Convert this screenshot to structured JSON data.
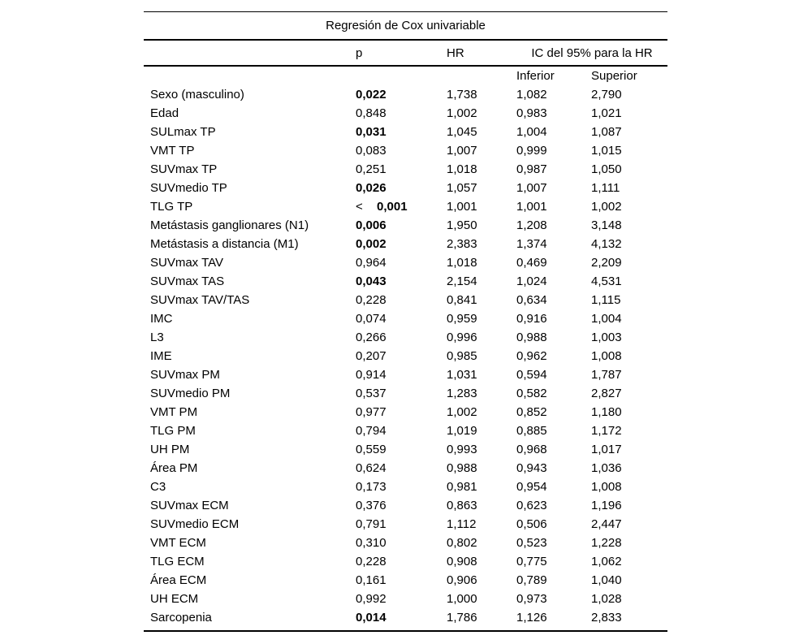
{
  "table": {
    "title": "Regresión de Cox univariable",
    "columns": {
      "p": "p",
      "hr": "HR",
      "ic": "IC del 95% para la HR",
      "inferior": "Inferior",
      "superior": "Superior"
    },
    "rows": [
      {
        "label": "Sexo (masculino)",
        "p_prefix": "",
        "p": "0,022",
        "p_bold": true,
        "hr": "1,738",
        "inf": "1,082",
        "sup": "2,790"
      },
      {
        "label": "Edad",
        "p_prefix": "",
        "p": "0,848",
        "p_bold": false,
        "hr": "1,002",
        "inf": "0,983",
        "sup": "1,021"
      },
      {
        "label": "SULmax TP",
        "p_prefix": "",
        "p": "0,031",
        "p_bold": true,
        "hr": "1,045",
        "inf": "1,004",
        "sup": "1,087"
      },
      {
        "label": "VMT TP",
        "p_prefix": "",
        "p": "0,083",
        "p_bold": false,
        "hr": "1,007",
        "inf": "0,999",
        "sup": "1,015"
      },
      {
        "label": "SUVmax TP",
        "p_prefix": "",
        "p": "0,251",
        "p_bold": false,
        "hr": "1,018",
        "inf": "0,987",
        "sup": "1,050"
      },
      {
        "label": "SUVmedio TP",
        "p_prefix": "",
        "p": "0,026",
        "p_bold": true,
        "hr": "1,057",
        "inf": "1,007",
        "sup": "1,111"
      },
      {
        "label": "TLG TP",
        "p_prefix": "<",
        "p": "0,001",
        "p_bold": true,
        "hr": "1,001",
        "inf": "1,001",
        "sup": "1,002"
      },
      {
        "label": "Metástasis ganglionares (N1)",
        "p_prefix": "",
        "p": "0,006",
        "p_bold": true,
        "hr": "1,950",
        "inf": "1,208",
        "sup": "3,148"
      },
      {
        "label": "Metástasis a distancia (M1)",
        "p_prefix": "",
        "p": "0,002",
        "p_bold": true,
        "hr": "2,383",
        "inf": "1,374",
        "sup": "4,132"
      },
      {
        "label": "SUVmax TAV",
        "p_prefix": "",
        "p": "0,964",
        "p_bold": false,
        "hr": "1,018",
        "inf": "0,469",
        "sup": "2,209"
      },
      {
        "label": "SUVmax TAS",
        "p_prefix": "",
        "p": "0,043",
        "p_bold": true,
        "hr": "2,154",
        "inf": "1,024",
        "sup": "4,531"
      },
      {
        "label": "SUVmax TAV/TAS",
        "p_prefix": "",
        "p": "0,228",
        "p_bold": false,
        "hr": "0,841",
        "inf": "0,634",
        "sup": "1,115"
      },
      {
        "label": "IMC",
        "p_prefix": "",
        "p": "0,074",
        "p_bold": false,
        "hr": "0,959",
        "inf": "0,916",
        "sup": "1,004"
      },
      {
        "label": "L3",
        "p_prefix": "",
        "p": "0,266",
        "p_bold": false,
        "hr": "0,996",
        "inf": "0,988",
        "sup": "1,003"
      },
      {
        "label": "IME",
        "p_prefix": "",
        "p": "0,207",
        "p_bold": false,
        "hr": "0,985",
        "inf": "0,962",
        "sup": "1,008"
      },
      {
        "label": "SUVmax PM",
        "p_prefix": "",
        "p": "0,914",
        "p_bold": false,
        "hr": "1,031",
        "inf": "0,594",
        "sup": "1,787"
      },
      {
        "label": "SUVmedio PM",
        "p_prefix": "",
        "p": "0,537",
        "p_bold": false,
        "hr": "1,283",
        "inf": "0,582",
        "sup": "2,827"
      },
      {
        "label": "VMT PM",
        "p_prefix": "",
        "p": "0,977",
        "p_bold": false,
        "hr": "1,002",
        "inf": "0,852",
        "sup": "1,180"
      },
      {
        "label": "TLG PM",
        "p_prefix": "",
        "p": "0,794",
        "p_bold": false,
        "hr": "1,019",
        "inf": "0,885",
        "sup": "1,172"
      },
      {
        "label": "UH PM",
        "p_prefix": "",
        "p": "0,559",
        "p_bold": false,
        "hr": "0,993",
        "inf": "0,968",
        "sup": "1,017"
      },
      {
        "label": "Área PM",
        "p_prefix": "",
        "p": "0,624",
        "p_bold": false,
        "hr": "0,988",
        "inf": "0,943",
        "sup": "1,036"
      },
      {
        "label": "C3",
        "p_prefix": "",
        "p": "0,173",
        "p_bold": false,
        "hr": "0,981",
        "inf": "0,954",
        "sup": "1,008"
      },
      {
        "label": "SUVmax ECM",
        "p_prefix": "",
        "p": "0,376",
        "p_bold": false,
        "hr": "0,863",
        "inf": "0,623",
        "sup": "1,196"
      },
      {
        "label": "SUVmedio ECM",
        "p_prefix": "",
        "p": "0,791",
        "p_bold": false,
        "hr": "1,112",
        "inf": "0,506",
        "sup": "2,447"
      },
      {
        "label": "VMT ECM",
        "p_prefix": "",
        "p": "0,310",
        "p_bold": false,
        "hr": "0,802",
        "inf": "0,523",
        "sup": "1,228"
      },
      {
        "label": "TLG ECM",
        "p_prefix": "",
        "p": "0,228",
        "p_bold": false,
        "hr": "0,908",
        "inf": "0,775",
        "sup": "1,062"
      },
      {
        "label": "Área ECM",
        "p_prefix": "",
        "p": "0,161",
        "p_bold": false,
        "hr": "0,906",
        "inf": "0,789",
        "sup": "1,040"
      },
      {
        "label": "UH ECM",
        "p_prefix": "",
        "p": "0,992",
        "p_bold": false,
        "hr": "1,000",
        "inf": "0,973",
        "sup": "1,028"
      },
      {
        "label": "Sarcopenia",
        "p_prefix": "",
        "p": "0,014",
        "p_bold": true,
        "hr": "1,786",
        "inf": "1,126",
        "sup": "2,833"
      }
    ]
  },
  "colors": {
    "background": "#ffffff",
    "text": "#000000",
    "rule": "#000000"
  }
}
